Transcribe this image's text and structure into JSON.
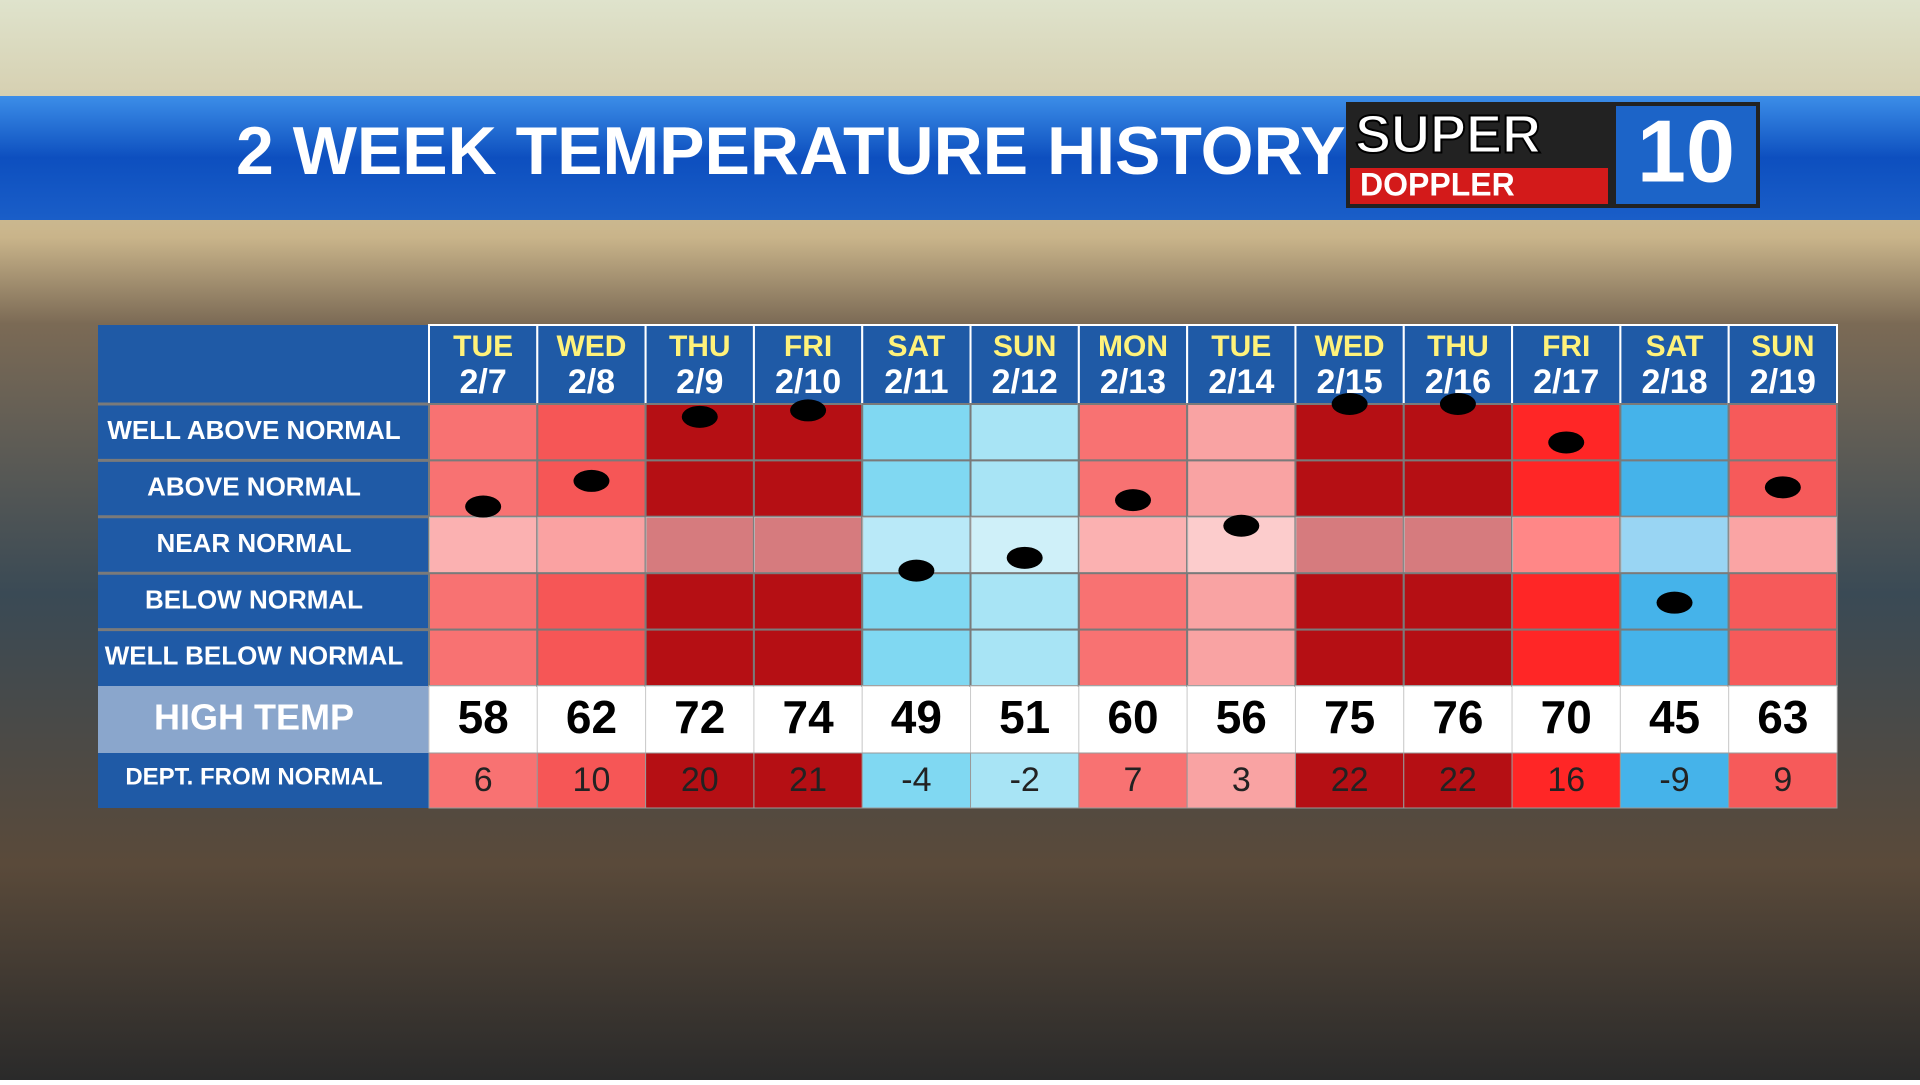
{
  "chart_data": {
    "type": "dot",
    "title": "2 WEEK TEMPERATURE HISTORY",
    "logo": {
      "top": "SUPER",
      "bottom": "DOPPLER",
      "number": "10"
    },
    "row_labels": [
      "WELL ABOVE NORMAL",
      "ABOVE NORMAL",
      "NEAR NORMAL",
      "BELOW NORMAL",
      "WELL BELOW NORMAL"
    ],
    "high_label": "HIGH TEMP",
    "dept_label": "DEPT. FROM NORMAL",
    "categories": [
      "TUE",
      "WED",
      "THU",
      "FRI",
      "SAT",
      "SUN",
      "MON",
      "TUE",
      "WED",
      "THU",
      "FRI",
      "SAT",
      "SUN"
    ],
    "dates": [
      "2/7",
      "2/8",
      "2/9",
      "2/10",
      "2/11",
      "2/12",
      "2/13",
      "2/14",
      "2/15",
      "2/16",
      "2/17",
      "2/18",
      "2/19"
    ],
    "high_temps": [
      58,
      62,
      72,
      74,
      49,
      51,
      60,
      56,
      75,
      76,
      70,
      45,
      63
    ],
    "values": [
      6,
      10,
      20,
      21,
      -4,
      -2,
      7,
      3,
      22,
      22,
      16,
      -9,
      9
    ],
    "colors": [
      "#f87272",
      "#f65656",
      "#b50f14",
      "#b50f14",
      "#80d8f2",
      "#a8e4f5",
      "#f87272",
      "#f9a3a3",
      "#b50f14",
      "#b50f14",
      "#ff2626",
      "#45b3ea",
      "#f65a5a"
    ],
    "ylim": [
      -22,
      22
    ]
  }
}
